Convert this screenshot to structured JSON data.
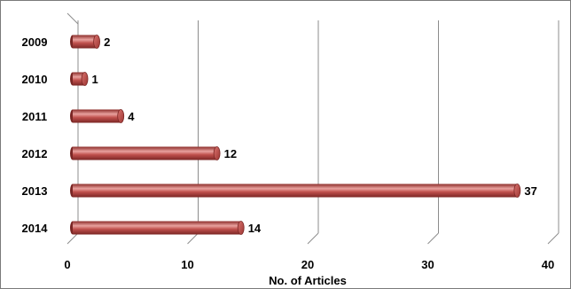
{
  "chart_data": {
    "type": "bar",
    "orientation": "horizontal",
    "categories": [
      "2009",
      "2010",
      "2011",
      "2012",
      "2013",
      "2014"
    ],
    "values": [
      2,
      1,
      4,
      12,
      37,
      14
    ],
    "title": "",
    "xlabel": "No. of Articles",
    "ylabel": "",
    "xlim": [
      0,
      40
    ],
    "xticks": [
      0,
      10,
      20,
      30,
      40
    ],
    "grid": "vertical",
    "legend": "none",
    "data_labels": true,
    "style": "3d-cylinder"
  },
  "colors": {
    "bar": "#c0504d",
    "bar_dark": "#8c2d2a",
    "bar_light": "#e8a19e",
    "grid": "#8c8c8c"
  }
}
